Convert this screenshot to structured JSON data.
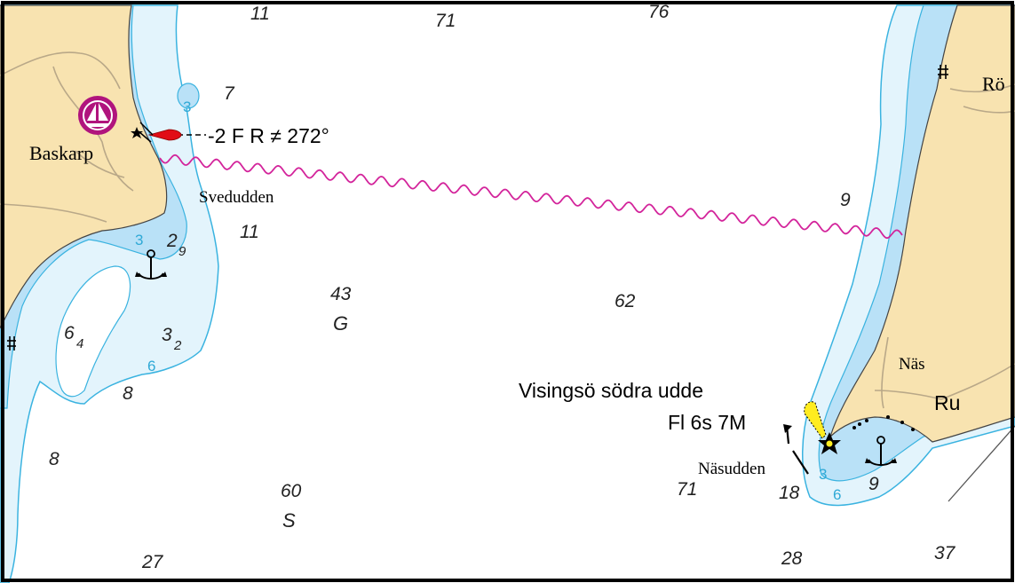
{
  "colors": {
    "land": "#f8e3b0",
    "shallow": "#b9e1f7",
    "mid": "#e3f4fc",
    "deep": "#ffffff",
    "contour": "#3ab3e0",
    "cable": "#d3249b",
    "magenta": "#b0147d",
    "light_flare": "#ffec1f",
    "sector_red": "#e10d16",
    "road": "#b9a888"
  },
  "places": {
    "baskarp": "Baskarp",
    "svedudden": "Svedudden",
    "nas": "Näs",
    "ru": "Ru",
    "ror_partial": "Rö",
    "nasudden": "Näsudden"
  },
  "lights": {
    "baskarp_light": "-2 F R ≠ 272°",
    "visingso_name": "Visingsö södra udde",
    "visingso_char": "Fl 6s 7M"
  },
  "seabed": {
    "g": "G",
    "s": "S"
  },
  "soundings": [
    {
      "main": "11"
    },
    {
      "main": "71"
    },
    {
      "main": "76"
    },
    {
      "main": "7"
    },
    {
      "main": "11"
    },
    {
      "main": "9"
    },
    {
      "main": "43"
    },
    {
      "main": "62"
    },
    {
      "main": "8"
    },
    {
      "main": "8"
    },
    {
      "main": "60"
    },
    {
      "main": "71"
    },
    {
      "main": "18"
    },
    {
      "main": "9"
    },
    {
      "main": "27"
    },
    {
      "main": "28"
    },
    {
      "main": "37"
    },
    {
      "main": "2",
      "sub": "9"
    },
    {
      "main": "6",
      "sub": "4"
    },
    {
      "main": "3",
      "sub": "2"
    }
  ],
  "contour_labels": [
    "3",
    "3",
    "6",
    "3",
    "6"
  ],
  "icons": {
    "anchorage": "anchor-icon",
    "marina": "sailboat-marina-icon",
    "light": "lighthouse-star-icon",
    "church": "church-cross-icon"
  }
}
